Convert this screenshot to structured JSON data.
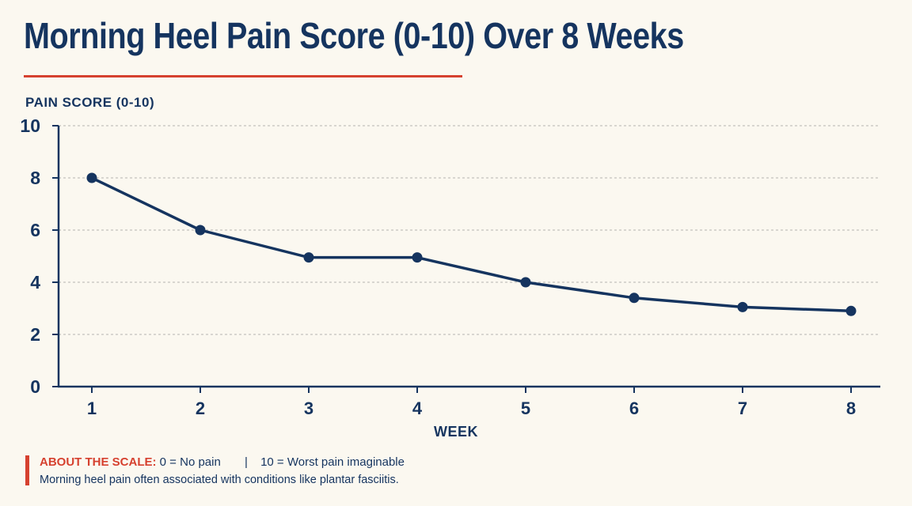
{
  "chart_data": {
    "type": "line",
    "title": "Morning Heel Pain Score (0-10) Over 8 Weeks",
    "xlabel": "WEEK",
    "ylabel": "PAIN SCORE (0-10)",
    "x": [
      1,
      2,
      3,
      4,
      5,
      6,
      7,
      8
    ],
    "y": [
      8,
      6,
      4.95,
      4.95,
      4,
      3.4,
      3.05,
      2.9
    ],
    "ylim": [
      0,
      10
    ],
    "yticks": [
      0,
      2,
      4,
      6,
      8,
      10
    ],
    "xticks": [
      1,
      2,
      3,
      4,
      5,
      6,
      7,
      8
    ],
    "grid": true,
    "line_color": "#15345f",
    "accent_color": "#d6412f"
  },
  "note": {
    "heading": "ABOUT THE SCALE:",
    "scale_low": "0 = No pain",
    "separator": "|",
    "scale_high": "10 = Worst pain imaginable",
    "caption": "Morning heel pain often associated with conditions like plantar fasciitis."
  }
}
